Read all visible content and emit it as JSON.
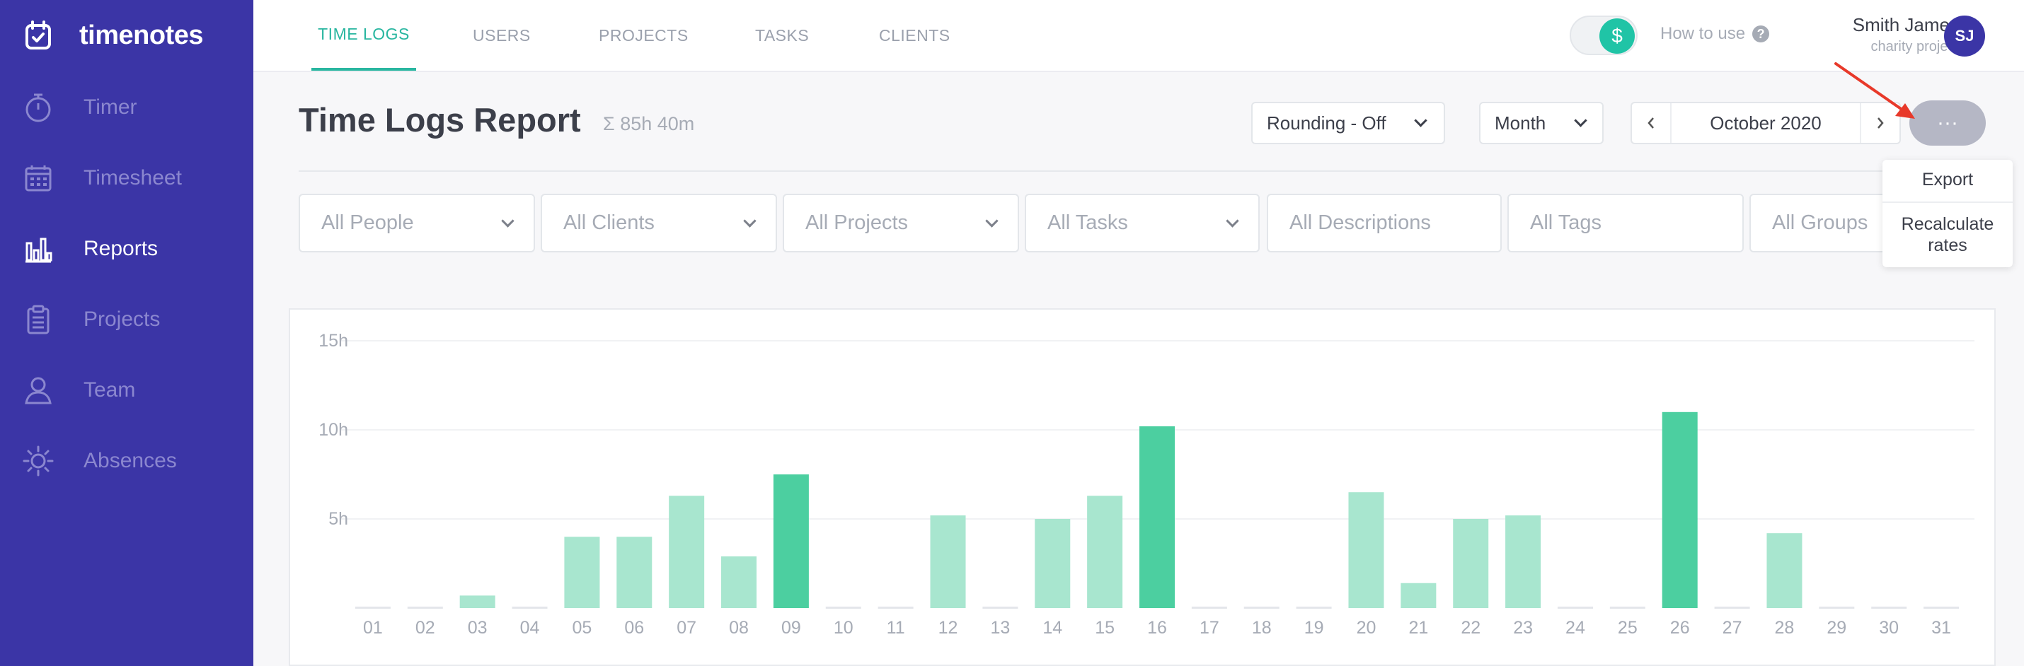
{
  "app": {
    "brand": "timenotes"
  },
  "sidebar": {
    "items": [
      {
        "label": "Timer",
        "icon": "stopwatch-icon",
        "active": false
      },
      {
        "label": "Timesheet",
        "icon": "calendar-grid-icon",
        "active": false
      },
      {
        "label": "Reports",
        "icon": "bar-chart-icon",
        "active": true
      },
      {
        "label": "Projects",
        "icon": "clipboard-icon",
        "active": false
      },
      {
        "label": "Team",
        "icon": "person-icon",
        "active": false
      },
      {
        "label": "Absences",
        "icon": "sun-icon",
        "active": false
      }
    ]
  },
  "topbar": {
    "tabs": [
      {
        "label": "TIME LOGS",
        "active": true
      },
      {
        "label": "USERS",
        "active": false
      },
      {
        "label": "PROJECTS",
        "active": false
      },
      {
        "label": "TASKS",
        "active": false
      },
      {
        "label": "CLIENTS",
        "active": false
      }
    ],
    "toggle_symbol": "$",
    "how_to_use": "How to use",
    "user_name": "Smith James",
    "user_project": "charity project",
    "avatar_initials": "SJ"
  },
  "header": {
    "title": "Time Logs Report",
    "total": "Σ 85h 40m",
    "rounding": "Rounding - Off",
    "period": "Month",
    "date": "October 2020",
    "more": "···"
  },
  "filters": {
    "people": "All People",
    "clients": "All Clients",
    "projects": "All Projects",
    "tasks": "All Tasks",
    "descriptions": "All Descriptions",
    "tags": "All Tags",
    "groups": "All Groups"
  },
  "popover": {
    "export": "Export",
    "recalc_line1": "Recalculate",
    "recalc_line2": "rates"
  },
  "colors": {
    "sidebar": "#3b35a6",
    "accent": "#29b6a0",
    "bar_light": "#a8e6cf",
    "bar_dark": "#4ccfa0",
    "arrow": "#e8392a"
  },
  "chart_data": {
    "type": "bar",
    "categories": [
      "01",
      "02",
      "03",
      "04",
      "05",
      "06",
      "07",
      "08",
      "09",
      "10",
      "11",
      "12",
      "13",
      "14",
      "15",
      "16",
      "17",
      "18",
      "19",
      "20",
      "21",
      "22",
      "23",
      "24",
      "25",
      "26",
      "27",
      "28",
      "29",
      "30",
      "31"
    ],
    "values": [
      0,
      0,
      0.7,
      0,
      4.0,
      4.0,
      6.3,
      2.9,
      7.5,
      0,
      0,
      5.2,
      0,
      5.0,
      6.3,
      10.2,
      0,
      0,
      0,
      6.5,
      1.4,
      5.0,
      5.2,
      0,
      0,
      11.0,
      0,
      4.2,
      0,
      0,
      0
    ],
    "highlighted": [
      "09",
      "16",
      "26"
    ],
    "y_ticks": [
      "5h",
      "10h",
      "15h"
    ],
    "y_tick_values": [
      5,
      10,
      15
    ],
    "ylim": [
      0,
      15
    ],
    "xlabel": "",
    "ylabel": "",
    "grid": true
  }
}
